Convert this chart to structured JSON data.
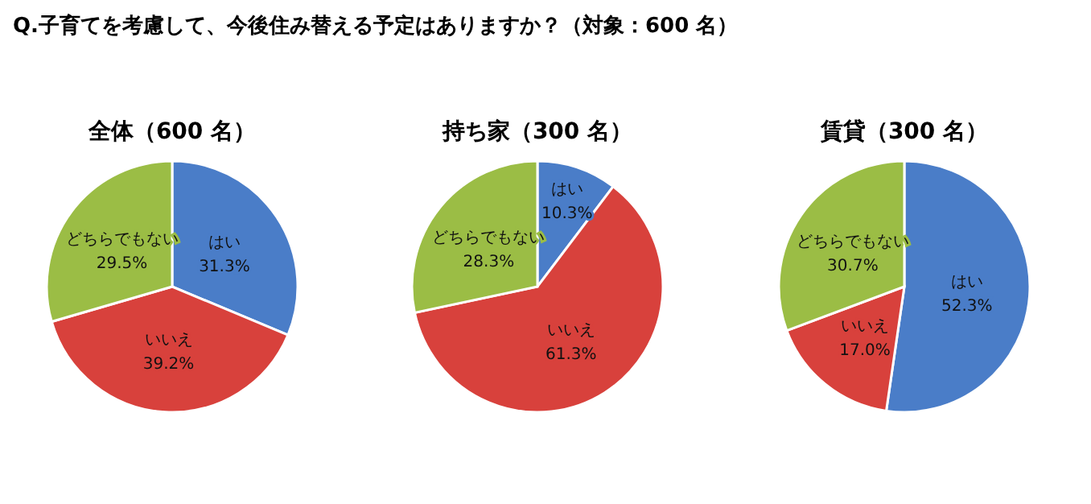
{
  "chart_data": [
    {
      "type": "other",
      "title": "Q.子育てを考慮して、今後住み替える予定はありますか？（対象：600 名）"
    },
    {
      "type": "pie",
      "title": "全体（600 名）",
      "categories": [
        "はい",
        "いいえ",
        "どちらでもない"
      ],
      "values": [
        31.3,
        39.2,
        29.5
      ],
      "value_labels": [
        "31.3%",
        "39.2%",
        "29.5%"
      ],
      "colors": [
        "#4a7dc8",
        "#d8413c",
        "#9bbd45"
      ]
    },
    {
      "type": "pie",
      "title": "持ち家（300 名）",
      "categories": [
        "はい",
        "いいえ",
        "どちらでもない"
      ],
      "values": [
        10.3,
        61.3,
        28.3
      ],
      "value_labels": [
        "10.3%",
        "61.3%",
        "28.3%"
      ],
      "colors": [
        "#4a7dc8",
        "#d8413c",
        "#9bbd45"
      ]
    },
    {
      "type": "pie",
      "title": "賃貸（300 名）",
      "categories": [
        "はい",
        "いいえ",
        "どちらでもない"
      ],
      "values": [
        52.3,
        17.0,
        30.7
      ],
      "value_labels": [
        "52.3%",
        "17.0%",
        "30.7%"
      ],
      "colors": [
        "#4a7dc8",
        "#d8413c",
        "#9bbd45"
      ]
    }
  ]
}
